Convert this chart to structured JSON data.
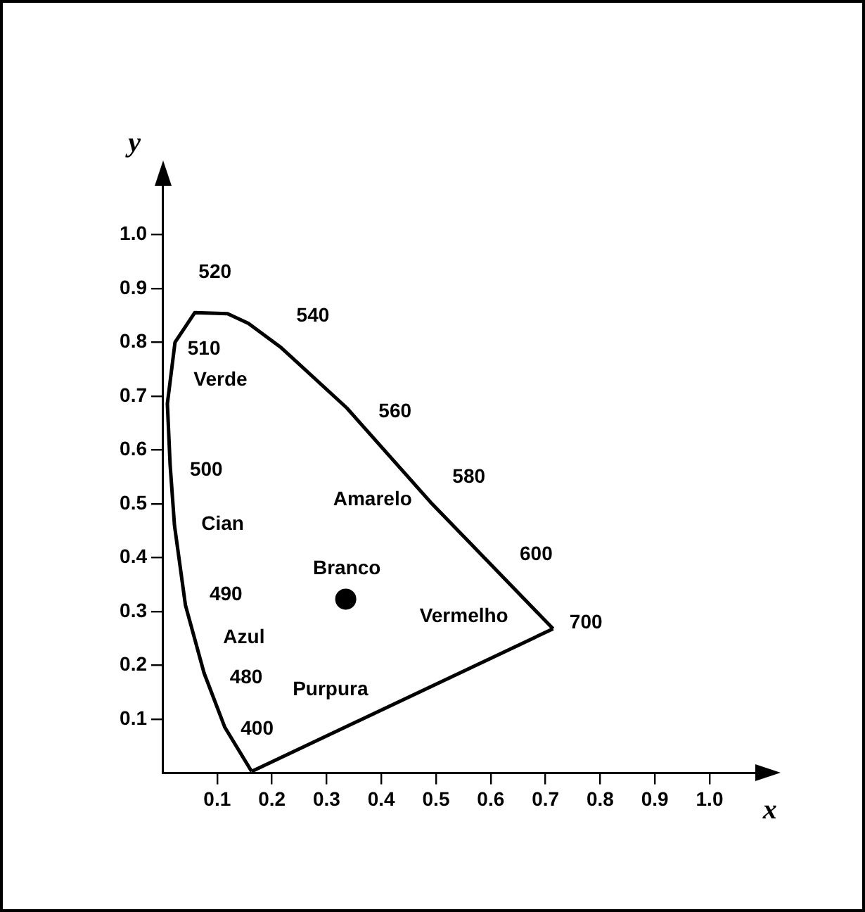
{
  "chart_data": {
    "type": "line",
    "xlabel": "x",
    "ylabel": "y",
    "xlim": [
      0,
      1.1
    ],
    "ylim": [
      0,
      1.1
    ],
    "xticks": [
      0.1,
      0.2,
      0.3,
      0.4,
      0.5,
      0.6,
      0.7,
      0.8,
      0.9,
      {
        "value": 1,
        "label": "1.0"
      }
    ],
    "yticks": [
      0.1,
      0.2,
      0.3,
      0.4,
      0.5,
      0.6,
      0.7,
      0.8,
      0.9,
      {
        "value": 1,
        "label": "1.0"
      }
    ],
    "grid": false,
    "legend": false,
    "series": [
      {
        "color": "#000000",
        "marker": "none",
        "x": [
          0.163,
          0.114,
          0.076,
          0.042,
          0.022,
          0.014,
          0.009,
          0.023,
          0.059,
          0.119,
          0.157,
          0.217,
          0.337,
          0.49,
          0.714
        ],
        "values": [
          0.003,
          0.085,
          0.186,
          0.312,
          0.46,
          0.573,
          0.686,
          0.8,
          0.855,
          0.853,
          0.835,
          0.79,
          0.678,
          0.503,
          0.268
        ]
      },
      {
        "color": "#000000",
        "marker": "none",
        "x": [
          0.163,
          0.714
        ],
        "values": [
          0.003,
          0.268
        ]
      },
      {
        "type": "scatter",
        "color": "#000000",
        "marker": "circle",
        "x": [
          0.335
        ],
        "values": [
          0.323
        ]
      }
    ],
    "annotations": [
      "520",
      "510",
      "Verde",
      "540",
      "560",
      "500",
      "Cian",
      "Amarelo",
      "580",
      "Branco",
      "490",
      "Azul",
      "480",
      "Purpura",
      "400",
      "600",
      "Vermelho",
      "700"
    ]
  }
}
